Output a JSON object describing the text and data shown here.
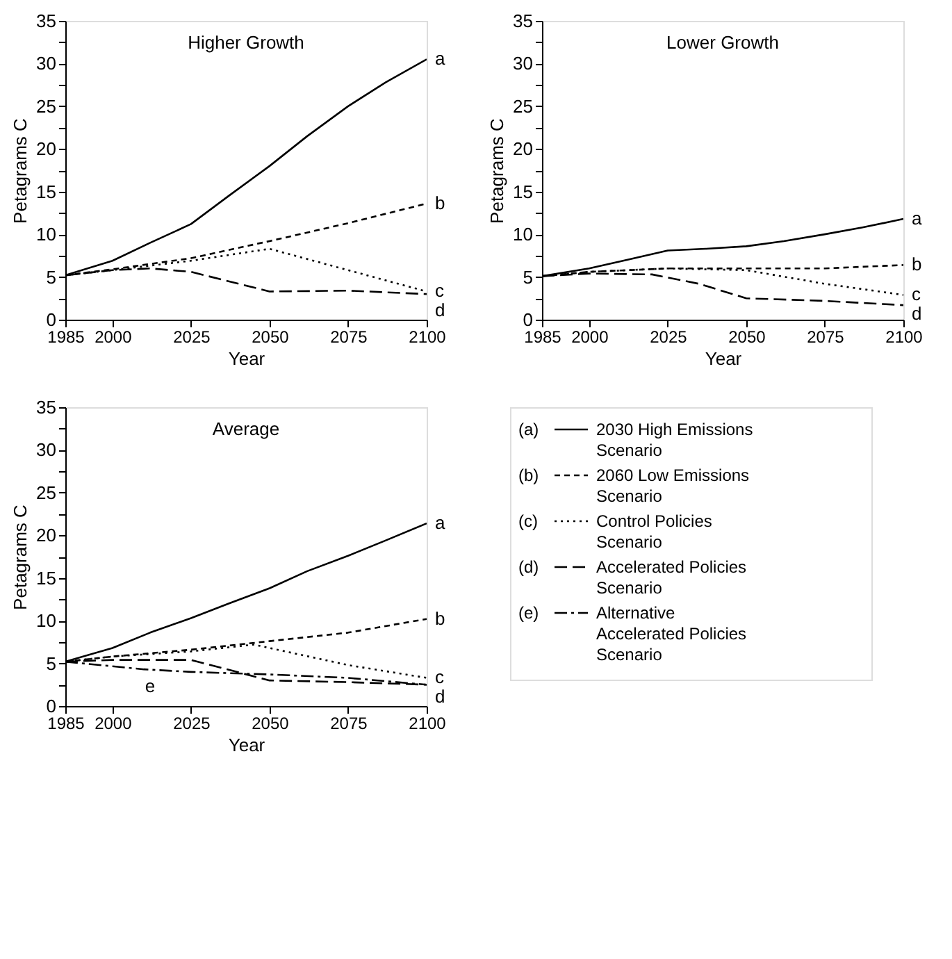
{
  "chart_data": [
    {
      "type": "line",
      "title": "Higher Growth",
      "xlabel": "Year",
      "ylabel": "Petagrams C",
      "xlim": [
        1985,
        2100
      ],
      "ylim": [
        0,
        35
      ],
      "xticks": [
        1985,
        2000,
        2025,
        2050,
        2075,
        2100
      ],
      "yticks": [
        0,
        {
          "value": 2.5,
          "label": null
        },
        5,
        {
          "value": 7.5,
          "label": null
        },
        10,
        {
          "value": 12.5,
          "label": null
        },
        15,
        {
          "value": 17.5,
          "label": null
        },
        20,
        {
          "value": 22.5,
          "label": null
        },
        25,
        {
          "value": 27.5,
          "label": null
        },
        30,
        {
          "value": 32.5,
          "label": null
        },
        35
      ],
      "series": [
        {
          "color": "#000000",
          "line_style": "solid",
          "x": [
            1985,
            2000,
            2012,
            2025,
            2037,
            2050,
            2062,
            2075,
            2087,
            2100
          ],
          "values": [
            5.2,
            6.9,
            9.0,
            11.2,
            14.5,
            18.0,
            21.5,
            25.0,
            27.8,
            30.5
          ]
        },
        {
          "color": "#000000",
          "line_style": "dashed",
          "x": [
            1985,
            2000,
            2025,
            2050,
            2075,
            2100
          ],
          "values": [
            5.2,
            5.9,
            7.2,
            9.2,
            11.3,
            13.6
          ]
        },
        {
          "color": "#000000",
          "line_style": "dotted",
          "x": [
            1985,
            2000,
            2025,
            2050,
            2075,
            2100
          ],
          "values": [
            5.2,
            5.8,
            6.9,
            8.3,
            5.8,
            3.3
          ]
        },
        {
          "color": "#000000",
          "line_style": "dashed",
          "x": [
            1985,
            2000,
            2012,
            2025,
            2050,
            2075,
            2100
          ],
          "values": [
            5.2,
            5.8,
            6.0,
            5.6,
            3.3,
            3.4,
            3.0
          ]
        }
      ],
      "annotations": [
        "a",
        "b",
        "c",
        "d"
      ]
    },
    {
      "type": "line",
      "title": "Lower Growth",
      "xlabel": "Year",
      "ylabel": "Petagrams C",
      "xlim": [
        1985,
        2100
      ],
      "ylim": [
        0,
        35
      ],
      "xticks": [
        1985,
        2000,
        2025,
        2050,
        2075,
        2100
      ],
      "yticks": [
        0,
        {
          "value": 2.5,
          "label": null
        },
        5,
        {
          "value": 7.5,
          "label": null
        },
        10,
        {
          "value": 12.5,
          "label": null
        },
        15,
        {
          "value": 17.5,
          "label": null
        },
        20,
        {
          "value": 22.5,
          "label": null
        },
        25,
        {
          "value": 27.5,
          "label": null
        },
        30,
        {
          "value": 32.5,
          "label": null
        },
        35
      ],
      "series": [
        {
          "color": "#000000",
          "line_style": "solid",
          "x": [
            1985,
            2000,
            2012,
            2025,
            2037,
            2050,
            2062,
            2075,
            2087,
            2100
          ],
          "values": [
            5.1,
            6.0,
            7.0,
            8.1,
            8.3,
            8.6,
            9.2,
            10.0,
            10.8,
            11.8
          ]
        },
        {
          "color": "#000000",
          "line_style": "dashed",
          "x": [
            1985,
            2000,
            2025,
            2050,
            2075,
            2100
          ],
          "values": [
            5.1,
            5.6,
            6.0,
            6.0,
            6.0,
            6.4
          ]
        },
        {
          "color": "#000000",
          "line_style": "dotted",
          "x": [
            1985,
            2000,
            2025,
            2050,
            2075,
            2100
          ],
          "values": [
            5.1,
            5.6,
            6.0,
            5.8,
            4.2,
            2.9
          ]
        },
        {
          "color": "#000000",
          "line_style": "dashed",
          "x": [
            1985,
            2000,
            2020,
            2035,
            2050,
            2075,
            2100
          ],
          "values": [
            5.1,
            5.4,
            5.3,
            4.2,
            2.5,
            2.2,
            1.7
          ]
        }
      ],
      "annotations": [
        "a",
        "b",
        "c",
        "d"
      ]
    },
    {
      "type": "line",
      "title": "Average",
      "xlabel": "Year",
      "ylabel": "Petagrams C",
      "xlim": [
        1985,
        2100
      ],
      "ylim": [
        0,
        35
      ],
      "xticks": [
        1985,
        2000,
        2025,
        2050,
        2075,
        2100
      ],
      "yticks": [
        0,
        {
          "value": 2.5,
          "label": null
        },
        5,
        {
          "value": 7.5,
          "label": null
        },
        10,
        {
          "value": 12.5,
          "label": null
        },
        15,
        {
          "value": 17.5,
          "label": null
        },
        20,
        {
          "value": 22.5,
          "label": null
        },
        25,
        {
          "value": 27.5,
          "label": null
        },
        30,
        {
          "value": 32.5,
          "label": null
        },
        35
      ],
      "series": [
        {
          "name": "(a) 2030 High Emissions Scenario",
          "color": "#000000",
          "line_style": "solid",
          "x": [
            1985,
            2000,
            2012,
            2025,
            2037,
            2050,
            2062,
            2075,
            2087,
            2100
          ],
          "values": [
            5.2,
            6.8,
            8.6,
            10.3,
            12.0,
            13.8,
            15.8,
            17.6,
            19.4,
            21.4
          ]
        },
        {
          "name": "(b) 2060 Low Emissions Scenario",
          "color": "#000000",
          "line_style": "dashed",
          "x": [
            1985,
            2000,
            2025,
            2050,
            2075,
            2100
          ],
          "values": [
            5.2,
            5.8,
            6.6,
            7.6,
            8.6,
            10.2
          ]
        },
        {
          "name": "(c) Control Policies Scenario",
          "color": "#000000",
          "line_style": "dotted",
          "x": [
            1985,
            2000,
            2025,
            2045,
            2075,
            2100
          ],
          "values": [
            5.2,
            5.8,
            6.4,
            7.2,
            4.8,
            3.3
          ]
        },
        {
          "name": "(d) Accelerated Policies Scenario",
          "color": "#000000",
          "line_style": "dashed",
          "x": [
            1985,
            2000,
            2025,
            2050,
            2075,
            2100
          ],
          "values": [
            5.2,
            5.4,
            5.4,
            3.0,
            2.8,
            2.5
          ]
        },
        {
          "name": "(e) Alternative Accelerated Policies Scenario",
          "color": "#000000",
          "line_style": "dashed",
          "x": [
            1985,
            2010,
            2025,
            2050,
            2075,
            2100
          ],
          "values": [
            5.2,
            4.3,
            4.0,
            3.7,
            3.3,
            2.5
          ]
        }
      ],
      "annotations": [
        "a",
        "b",
        "c",
        "d",
        {
          "text": "e",
          "x": 2012,
          "y": 4.2
        }
      ]
    }
  ]
}
